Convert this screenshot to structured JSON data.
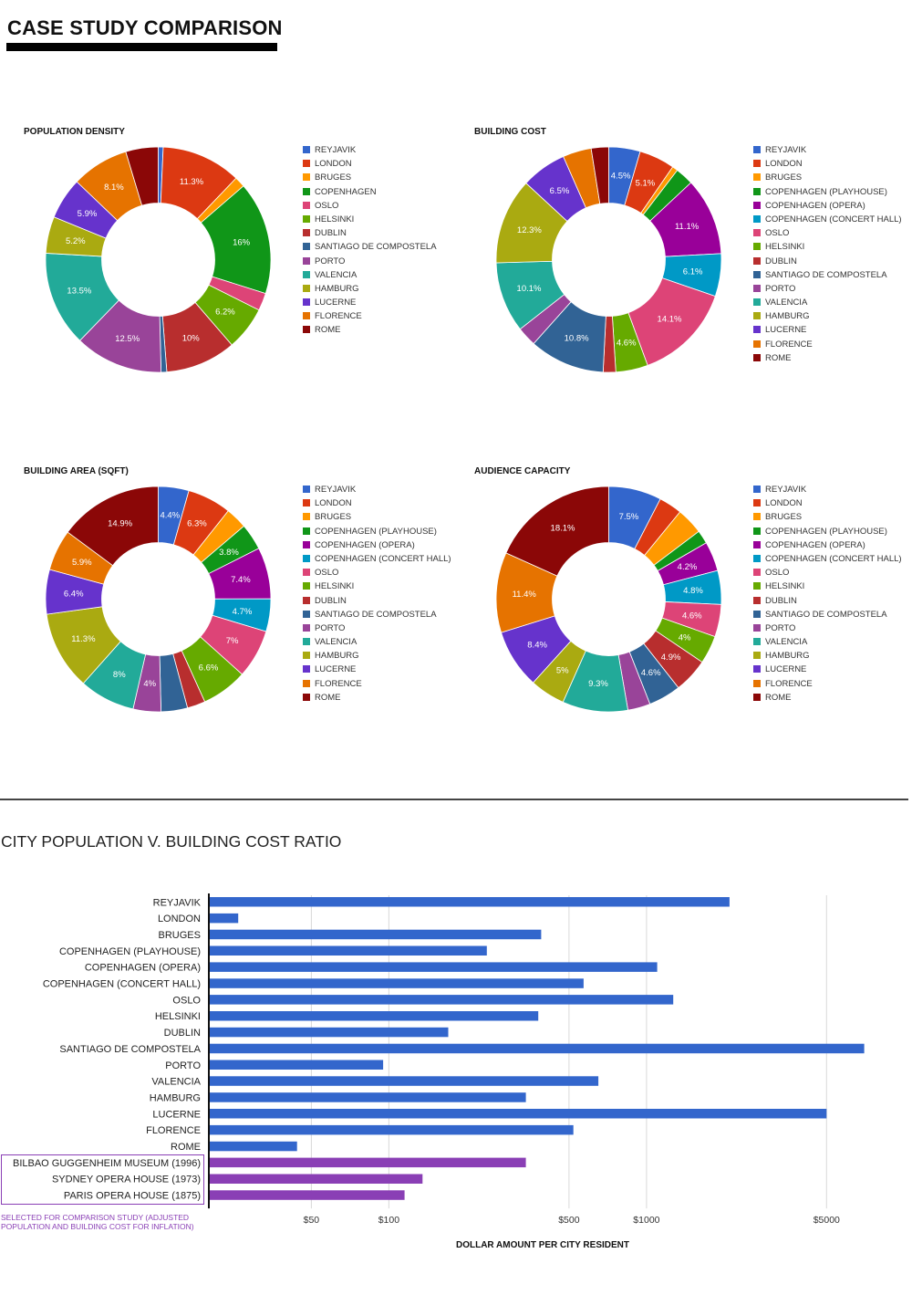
{
  "page": {
    "title": "CASE STUDY COMPARISON"
  },
  "colors": {
    "REYJAVIK": "#3366cc",
    "LONDON": "#dc3912",
    "BRUGES": "#ff9900",
    "COPENHAGEN": "#109618",
    "COPENHAGEN (PLAYHOUSE)": "#109618",
    "COPENHAGEN (OPERA)": "#990099",
    "COPENHAGEN (CONCERT HALL)": "#0099c6",
    "OSLO": "#dd4477",
    "HELSINKI": "#66aa00",
    "DUBLIN": "#b82e2e",
    "SANTIAGO DE COMPOSTELA": "#316395",
    "PORTO": "#994499",
    "VALENCIA": "#22aa99",
    "HAMBURG": "#aaaa11",
    "LUCERNE": "#6633cc",
    "FLORENCE": "#e67300",
    "ROME": "#8b0707",
    "bar_main": "#3366cc",
    "bar_highlight": "#8a3fb5"
  },
  "chart_data": [
    {
      "type": "pie",
      "title": "POPULATION DENSITY",
      "categories": [
        "REYJAVIK",
        "LONDON",
        "BRUGES",
        "COPENHAGEN",
        "OSLO",
        "HELSINKI",
        "DUBLIN",
        "SANTIAGO DE COMPOSTELA",
        "PORTO",
        "VALENCIA",
        "HAMBURG",
        "LUCERNE",
        "FLORENCE",
        "ROME"
      ],
      "values": [
        0.7,
        11.3,
        1.5,
        16,
        2.5,
        6.2,
        10,
        0.8,
        12.5,
        13.5,
        5.2,
        5.9,
        8.1,
        4.6
      ],
      "labels": [
        "",
        "11.3%",
        "",
        "16%",
        "",
        "6.2%",
        "10%",
        "",
        "12.5%",
        "13.5%",
        "5.2%",
        "5.9%",
        "8.1%",
        ""
      ]
    },
    {
      "type": "pie",
      "title": "BUILDING COST",
      "categories": [
        "REYJAVIK",
        "LONDON",
        "BRUGES",
        "COPENHAGEN (PLAYHOUSE)",
        "COPENHAGEN (OPERA)",
        "COPENHAGEN (CONCERT HALL)",
        "OSLO",
        "HELSINKI",
        "DUBLIN",
        "SANTIAGO DE COMPOSTELA",
        "PORTO",
        "VALENCIA",
        "HAMBURG",
        "LUCERNE",
        "FLORENCE",
        "ROME"
      ],
      "values": [
        4.5,
        5.1,
        0.8,
        2.6,
        11.1,
        6.1,
        14.1,
        4.6,
        1.8,
        10.8,
        2.8,
        10.1,
        12.3,
        6.5,
        4.1,
        2.5
      ],
      "labels": [
        "4.5%",
        "5.1%",
        "",
        "",
        "11.1%",
        "6.1%",
        "14.1%",
        "4.6%",
        "",
        "10.8%",
        "",
        "10.1%",
        "12.3%",
        "6.5%",
        "",
        ""
      ]
    },
    {
      "type": "pie",
      "title": "BUILDING AREA (SQFT)",
      "categories": [
        "REYJAVIK",
        "LONDON",
        "BRUGES",
        "COPENHAGEN (PLAYHOUSE)",
        "COPENHAGEN (OPERA)",
        "COPENHAGEN (CONCERT HALL)",
        "OSLO",
        "HELSINKI",
        "DUBLIN",
        "SANTIAGO DE COMPOSTELA",
        "PORTO",
        "VALENCIA",
        "HAMBURG",
        "LUCERNE",
        "FLORENCE",
        "ROME"
      ],
      "values": [
        4.4,
        6.3,
        3.1,
        3.8,
        7.4,
        4.7,
        7,
        6.6,
        2.6,
        3.8,
        4,
        8,
        11.3,
        6.4,
        5.9,
        14.9
      ],
      "labels": [
        "4.4%",
        "6.3%",
        "",
        "3.8%",
        "7.4%",
        "4.7%",
        "7%",
        "6.6%",
        "",
        "",
        "4%",
        "8%",
        "11.3%",
        "6.4%",
        "5.9%",
        "14.9%"
      ]
    },
    {
      "type": "pie",
      "title": "AUDIENCE CAPACITY",
      "categories": [
        "REYJAVIK",
        "LONDON",
        "BRUGES",
        "COPENHAGEN (PLAYHOUSE)",
        "COPENHAGEN (OPERA)",
        "COPENHAGEN (CONCERT HALL)",
        "OSLO",
        "HELSINKI",
        "DUBLIN",
        "SANTIAGO DE COMPOSTELA",
        "PORTO",
        "VALENCIA",
        "HAMBURG",
        "LUCERNE",
        "FLORENCE",
        "ROME"
      ],
      "values": [
        7.5,
        3.3,
        3.8,
        1.9,
        4.2,
        4.8,
        4.6,
        4,
        4.9,
        4.6,
        3.2,
        9.3,
        5,
        8.4,
        11.4,
        18.1
      ],
      "labels": [
        "7.5%",
        "",
        "",
        "",
        "4.2%",
        "4.8%",
        "4.6%",
        "4%",
        "4.9%",
        "4.6%",
        "",
        "9.3%",
        "5%",
        "8.4%",
        "11.4%",
        "18.1%"
      ]
    },
    {
      "type": "bar",
      "orientation": "horizontal",
      "title": "CITY POPULATION  V.  BUILDING COST RATIO",
      "xlabel": "DOLLAR AMOUNT PER CITY RESIDENT",
      "xscale": "log",
      "xlim": [
        20,
        8000
      ],
      "xticks": [
        50,
        100,
        500,
        1000,
        5000
      ],
      "xtick_labels": [
        "$50",
        "$100",
        "$500",
        "$1000",
        "$5000"
      ],
      "categories": [
        "REYJAVIK",
        "LONDON",
        "BRUGES",
        "COPENHAGEN (PLAYHOUSE)",
        "COPENHAGEN (OPERA)",
        "COPENHAGEN (CONCERT HALL)",
        "OSLO",
        "HELSINKI",
        "DUBLIN",
        "SANTIAGO DE COMPOSTELA",
        "PORTO",
        "VALENCIA",
        "HAMBURG",
        "LUCERNE",
        "FLORENCE",
        "ROME",
        "BILBAO GUGGENHEIM MUSEUM (1996)",
        "SYDNEY OPERA HOUSE (1973)",
        "PARIS OPERA HOUSE (1875)"
      ],
      "values": [
        2100,
        26,
        390,
        240,
        1100,
        570,
        1270,
        380,
        170,
        7000,
        95,
        650,
        340,
        5000,
        520,
        44,
        340,
        135,
        115
      ],
      "highlighted": [
        "BILBAO GUGGENHEIM MUSEUM (1996)",
        "SYDNEY OPERA HOUSE (1973)",
        "PARIS OPERA HOUSE (1875)"
      ],
      "note": "SELECTED FOR COMPARISON STUDY (ADJUSTED POPULATION AND BUILDING COST FOR INFLATION)"
    }
  ]
}
